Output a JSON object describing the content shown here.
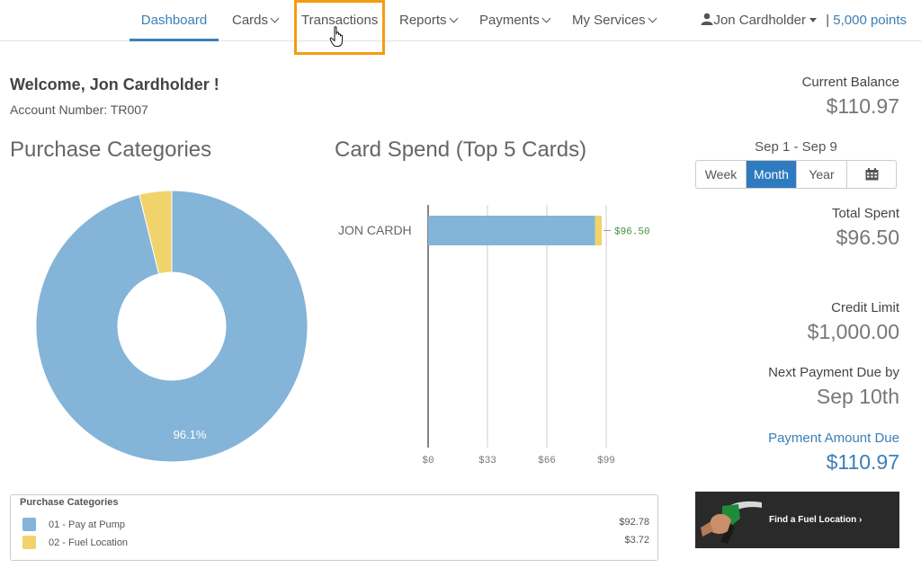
{
  "nav": {
    "items": [
      {
        "label": "Dashboard",
        "active": true,
        "dropdown": false
      },
      {
        "label": "Cards",
        "dropdown": true
      },
      {
        "label": "Transactions",
        "dropdown": false
      },
      {
        "label": "Reports",
        "dropdown": true
      },
      {
        "label": "Payments",
        "dropdown": true
      },
      {
        "label": "My Services",
        "dropdown": true
      }
    ],
    "user_name": "Jon Cardholder",
    "separator": "|",
    "points": "5,000 points"
  },
  "welcome": {
    "greeting": "Welcome, Jon Cardholder !",
    "account_number": "Account Number: TR007"
  },
  "purchase_categories": {
    "title": "Purchase Categories",
    "legend_title": "Purchase Categories",
    "items": [
      {
        "label": "01 - Pay at Pump",
        "amount": "$92.78"
      },
      {
        "label": "02 - Fuel Location",
        "amount": "$3.72"
      }
    ]
  },
  "card_spend": {
    "title": "Card Spend (Top 5 Cards)"
  },
  "chart_data": [
    {
      "type": "pie",
      "title": "Purchase Categories",
      "categories": [
        "01 - Pay at Pump",
        "02 - Fuel Location"
      ],
      "values": [
        92.78,
        3.72
      ],
      "colors": [
        "#84b4d8",
        "#f0d36b"
      ],
      "data_labels": [
        "96.1%",
        ""
      ]
    },
    {
      "type": "bar",
      "orientation": "horizontal",
      "title": "Card Spend (Top 5 Cards)",
      "categories": [
        "JON CARDH"
      ],
      "series": [
        {
          "values": [
            92.78
          ],
          "color": "#84b4d8"
        },
        {
          "values": [
            3.72
          ],
          "color": "#f0d36b"
        }
      ],
      "data_labels": [
        "$96.50"
      ],
      "xlim": [
        0,
        99
      ],
      "xticks": [
        "$0",
        "$33",
        "$66",
        "$99"
      ],
      "grid": true
    }
  ],
  "right": {
    "current_balance_label": "Current Balance",
    "current_balance": "$110.97",
    "date_range": "Sep 1 - Sep 9",
    "period_buttons": [
      "Week",
      "Month",
      "Year"
    ],
    "active_period": "Month",
    "total_spent_label": "Total Spent",
    "total_spent": "$96.50",
    "credit_limit_label": "Credit Limit",
    "credit_limit": "$1,000.00",
    "next_payment_label": "Next Payment Due by",
    "next_payment_date": "Sep 10th",
    "payment_amount_label": "Payment Amount Due",
    "payment_amount": "$110.97",
    "fuel_banner_text": "Find a Fuel Location ›"
  },
  "colors": {
    "accent": "#3a7fb8",
    "highlight": "#f39c12",
    "pie_primary": "#84b4d8",
    "pie_secondary": "#f0d36b"
  },
  "icons": [
    "user-icon",
    "chevron-down-icon",
    "calendar-icon",
    "hand-cursor-icon",
    "fuel-pump-icon"
  ]
}
